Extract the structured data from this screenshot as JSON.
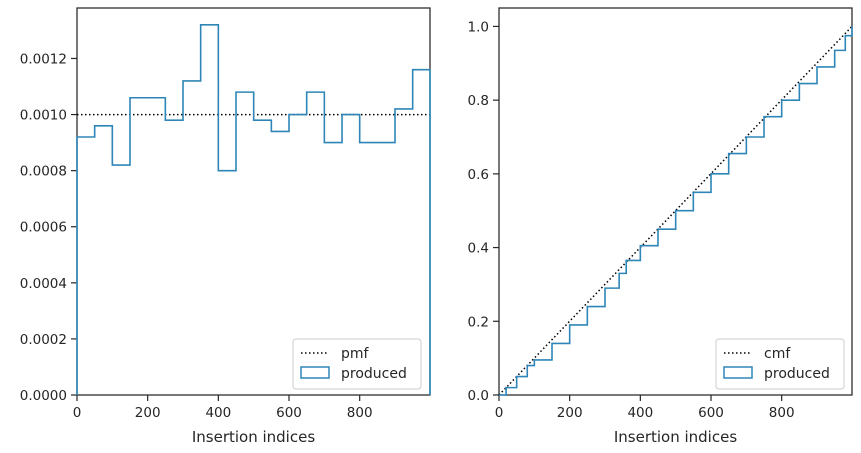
{
  "chart_data": [
    {
      "type": "step",
      "xlabel": "Insertion indices",
      "ylabel": "",
      "xlim": [
        0,
        999
      ],
      "ylim": [
        0,
        0.00138
      ],
      "xticks": [
        "0",
        "200",
        "400",
        "600",
        "800"
      ],
      "yticks": [
        "0.0000",
        "0.0002",
        "0.0004",
        "0.0006",
        "0.0008",
        "0.0010",
        "0.0012"
      ],
      "legend_position": "lower-right",
      "series": [
        {
          "name": "pmf",
          "style": "dotted",
          "color": "#000000",
          "x": [
            0,
            999
          ],
          "y": [
            0.001,
            0.001
          ]
        },
        {
          "name": "produced",
          "style": "step",
          "color": "#2e86b8",
          "bin_edges": [
            0,
            50,
            100,
            150,
            200,
            250,
            300,
            350,
            400,
            450,
            500,
            550,
            600,
            650,
            700,
            750,
            800,
            850,
            900,
            950,
            999
          ],
          "values": [
            0.00092,
            0.00096,
            0.00082,
            0.00106,
            0.00106,
            0.00098,
            0.00112,
            0.00132,
            0.0008,
            0.00108,
            0.00098,
            0.00094,
            0.001,
            0.00108,
            0.0009,
            0.001,
            0.0009,
            0.0009,
            0.00102,
            0.00116
          ]
        }
      ]
    },
    {
      "type": "step",
      "xlabel": "Insertion indices",
      "ylabel": "",
      "xlim": [
        0,
        999
      ],
      "ylim": [
        0,
        1.05
      ],
      "xticks": [
        "0",
        "200",
        "400",
        "600",
        "800"
      ],
      "yticks": [
        "0.0",
        "0.2",
        "0.4",
        "0.6",
        "0.8",
        "1.0"
      ],
      "legend_position": "lower-right",
      "series": [
        {
          "name": "cmf",
          "style": "dotted",
          "color": "#000000",
          "x": [
            0,
            999
          ],
          "y": [
            0,
            1
          ]
        },
        {
          "name": "produced",
          "style": "step",
          "color": "#2e86b8",
          "x": [
            0,
            20,
            50,
            80,
            100,
            150,
            200,
            250,
            300,
            340,
            360,
            400,
            450,
            500,
            550,
            600,
            650,
            700,
            750,
            800,
            850,
            900,
            950,
            980,
            999
          ],
          "y": [
            0,
            0.02,
            0.05,
            0.08,
            0.095,
            0.14,
            0.19,
            0.24,
            0.29,
            0.33,
            0.365,
            0.405,
            0.45,
            0.5,
            0.55,
            0.6,
            0.655,
            0.7,
            0.755,
            0.8,
            0.845,
            0.89,
            0.935,
            0.975,
            1.0
          ]
        }
      ]
    }
  ]
}
